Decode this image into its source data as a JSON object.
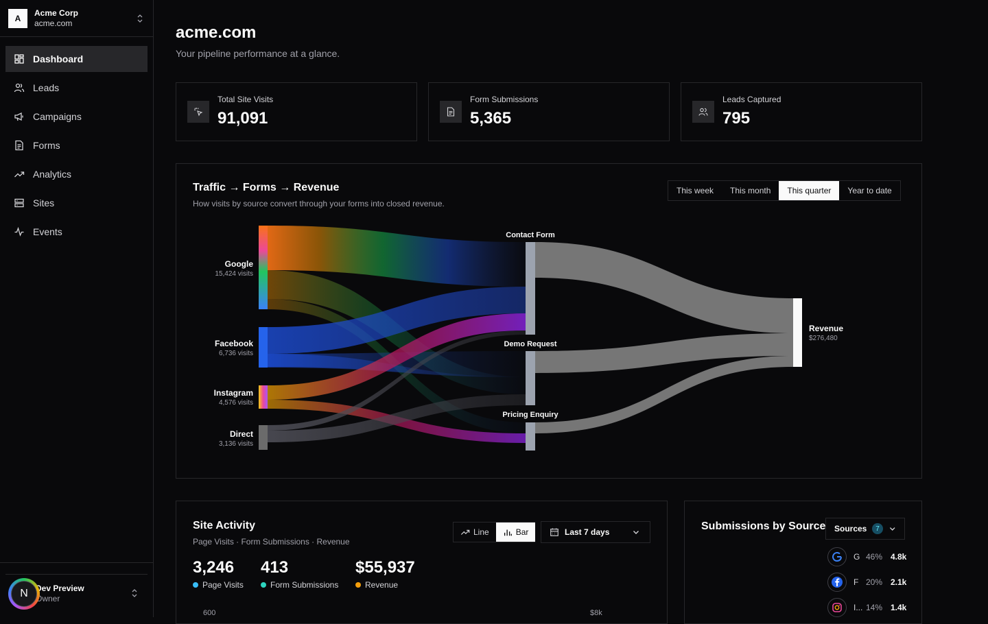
{
  "org": {
    "initial": "A",
    "name": "Acme Corp",
    "domain": "acme.com"
  },
  "nav": [
    {
      "label": "Dashboard",
      "icon": "dashboard-icon",
      "active": true
    },
    {
      "label": "Leads",
      "icon": "users-icon"
    },
    {
      "label": "Campaigns",
      "icon": "megaphone-icon"
    },
    {
      "label": "Forms",
      "icon": "form-icon"
    },
    {
      "label": "Analytics",
      "icon": "trending-up-icon"
    },
    {
      "label": "Sites",
      "icon": "sites-icon"
    },
    {
      "label": "Events",
      "icon": "activity-icon"
    }
  ],
  "user": {
    "initial": "N",
    "name": "Dev Preview",
    "role": "Owner"
  },
  "page": {
    "title": "acme.com",
    "subtitle": "Your pipeline performance at a glance."
  },
  "stats": [
    {
      "label": "Total Site Visits",
      "value": "91,091",
      "icon": "cursor-click-icon"
    },
    {
      "label": "Form Submissions",
      "value": "5,365",
      "icon": "document-icon"
    },
    {
      "label": "Leads Captured",
      "value": "795",
      "icon": "users-icon"
    }
  ],
  "sankey": {
    "title": "Traffic → Forms → Revenue",
    "subtitle": "How visits by source convert through your forms into closed revenue.",
    "ranges": [
      "This week",
      "This month",
      "This quarter",
      "Year to date"
    ],
    "active_range": "This quarter",
    "sources": [
      {
        "name": "Google",
        "visits": "15,424 visits"
      },
      {
        "name": "Facebook",
        "visits": "6,736 visits"
      },
      {
        "name": "Instagram",
        "visits": "4,576 visits"
      },
      {
        "name": "Direct",
        "visits": "3,136 visits"
      }
    ],
    "forms": [
      {
        "name": "Contact Form"
      },
      {
        "name": "Demo Request"
      },
      {
        "name": "Pricing Enquiry"
      }
    ],
    "revenue": {
      "name": "Revenue",
      "value": "$276,480"
    }
  },
  "activity": {
    "title": "Site Activity",
    "subtitle": "Page Visits · Form Submissions · Revenue",
    "toggle": {
      "line": "Line",
      "bar": "Bar",
      "active": "Bar"
    },
    "range": "Last 7 days",
    "metrics": [
      {
        "value": "3,246",
        "label": "Page Visits",
        "color": "#38bdf8"
      },
      {
        "value": "413",
        "label": "Form Submissions",
        "color": "#2dd4bf"
      },
      {
        "value": "$55,937",
        "label": "Revenue",
        "color": "#f59e0b"
      }
    ],
    "axis_left_top": "600",
    "axis_right_top": "$8k"
  },
  "submissions": {
    "title": "Submissions by Source",
    "filter_label": "Sources",
    "filter_count": "7",
    "rows": [
      {
        "short": "G",
        "pct": "46%",
        "count": "4.8k",
        "icon": "google-icon"
      },
      {
        "short": "F",
        "pct": "20%",
        "count": "2.1k",
        "icon": "facebook-icon"
      },
      {
        "short": "I...",
        "pct": "14%",
        "count": "1.4k",
        "icon": "instagram-icon"
      }
    ]
  },
  "colors": {
    "accent": "#fafafa",
    "background": "#09090b",
    "border": "#27272a"
  }
}
